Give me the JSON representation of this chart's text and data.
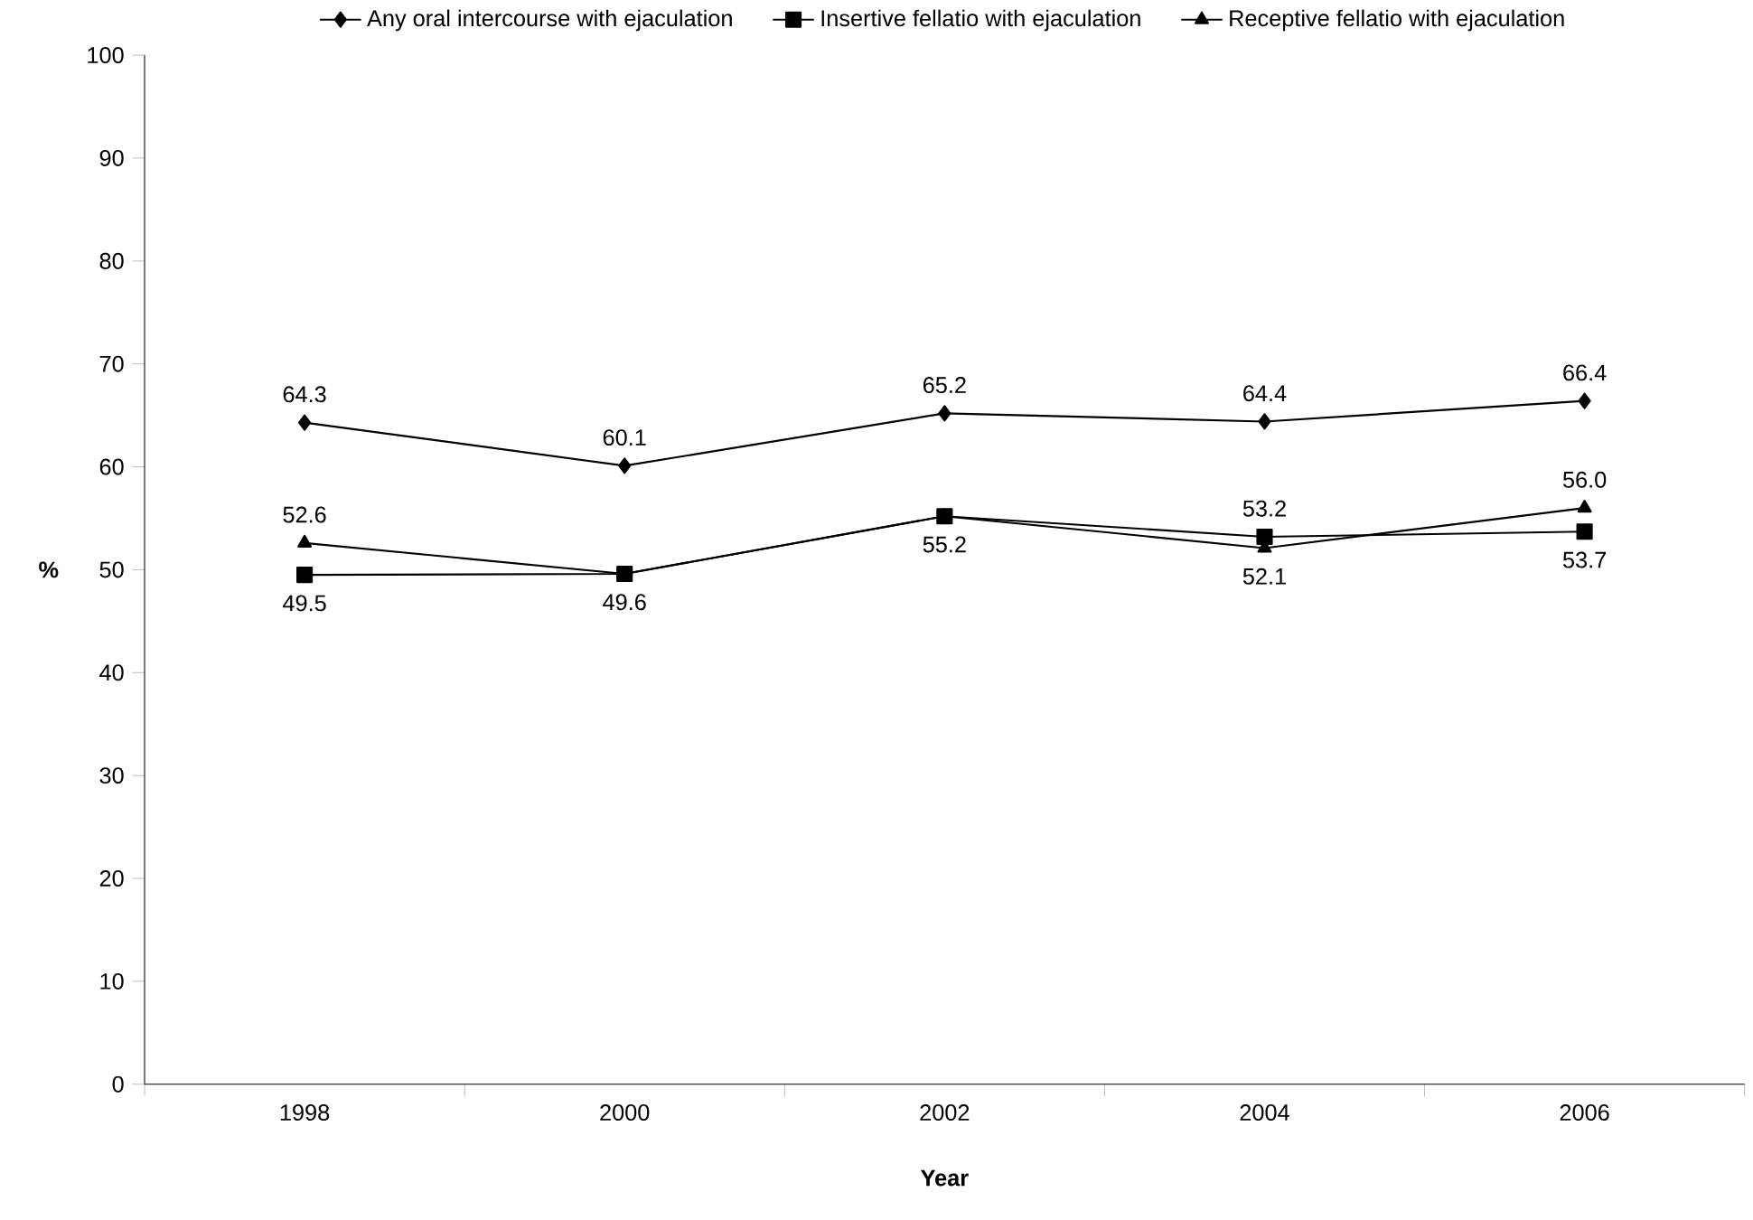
{
  "chart_data": {
    "type": "line",
    "xlabel": "Year",
    "ylabel": "%",
    "categories": [
      "1998",
      "2000",
      "2002",
      "2004",
      "2006"
    ],
    "series": [
      {
        "name": "Any oral intercourse with ejaculation",
        "color": "#000000",
        "marker": "diamond",
        "values": [
          64.3,
          60.1,
          65.2,
          64.4,
          66.4
        ],
        "value_labels": [
          "64.3",
          "60.1",
          "65.2",
          "64.4",
          "66.4"
        ]
      },
      {
        "name": "Insertive fellatio with ejaculation",
        "color": "#000000",
        "marker": "square",
        "values": [
          49.5,
          49.6,
          55.2,
          53.2,
          53.7
        ],
        "value_labels": [
          "49.5",
          "49.6",
          "55.2",
          "53.2",
          "53.7"
        ]
      },
      {
        "name": "Receptive fellatio with ejaculation",
        "color": "#000000",
        "marker": "triangle",
        "values": [
          52.6,
          49.6,
          55.2,
          52.1,
          56.0
        ],
        "value_labels": [
          "52.6",
          null,
          null,
          "52.1",
          "56.0"
        ]
      }
    ],
    "ylim": [
      0,
      100
    ],
    "yticks": [
      0,
      10,
      20,
      30,
      40,
      50,
      60,
      70,
      80,
      90,
      100
    ],
    "legend": "top",
    "grid": false,
    "line_style": "solid"
  }
}
